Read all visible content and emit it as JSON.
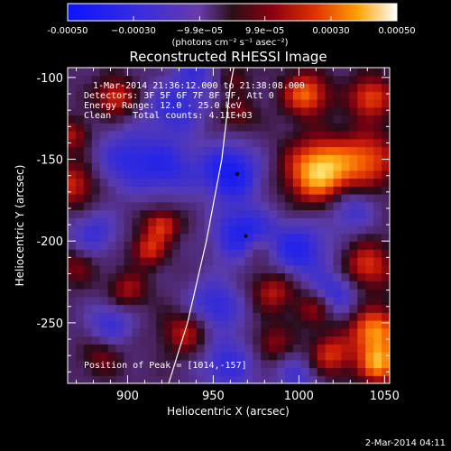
{
  "chart_data": {
    "type": "heatmap",
    "title": "Reconstructed RHESSI Image",
    "xlabel": "Heliocentric X (arcsec)",
    "ylabel": "Heliocentric Y (arcsec)",
    "xlim": [
      865,
      1053
    ],
    "ylim": [
      -287,
      -94
    ],
    "xticks": [
      900,
      950,
      1000,
      1050
    ],
    "yticks": [
      -100,
      -150,
      -200,
      -250
    ],
    "colorbar": {
      "range": [
        -0.0005,
        0.0005
      ],
      "tick_values": [
        -0.0005,
        -0.0003,
        -9.9e-05,
        9.9e-05,
        0.0003,
        0.0005
      ],
      "tick_labels": [
        "-0.00050",
        "−0.00030",
        "−9.9e−05",
        "9.9e−05",
        "0.00030",
        "0.00050"
      ],
      "unit_label": "(photons cm⁻² s⁻¹ asec⁻²)"
    },
    "annotations": [
      "1-Mar-2014 21:36:12.000 to 21:38:08.000",
      "Detectors: 3F 5F 6F 7F 8F 9F, Att 0",
      "Energy Range: 12.0 - 25.0 keV",
      "Clean    Total counts: 4.11E+03"
    ],
    "peak_label": "Position of Peak = [1014,-157]",
    "grid": false,
    "sources": [
      {
        "x": 1012,
        "y": -157,
        "sigma": 13,
        "amp": 1.0
      },
      {
        "x": 1004,
        "y": -110,
        "sigma": 9,
        "amp": 0.7
      },
      {
        "x": 1042,
        "y": -112,
        "sigma": 9,
        "amp": 0.6
      },
      {
        "x": 1040,
        "y": -150,
        "sigma": 12,
        "amp": 0.6
      },
      {
        "x": 1040,
        "y": -215,
        "sigma": 10,
        "amp": 0.55
      },
      {
        "x": 1044,
        "y": -255,
        "sigma": 10,
        "amp": 0.8
      },
      {
        "x": 1047,
        "y": -275,
        "sigma": 8,
        "amp": 0.8
      },
      {
        "x": 1010,
        "y": -240,
        "sigma": 8,
        "amp": 0.45
      },
      {
        "x": 1018,
        "y": -270,
        "sigma": 9,
        "amp": 0.55
      },
      {
        "x": 985,
        "y": -262,
        "sigma": 8,
        "amp": 0.35
      },
      {
        "x": 985,
        "y": -230,
        "sigma": 9,
        "amp": 0.45
      },
      {
        "x": 975,
        "y": -205,
        "sigma": 8,
        "amp": 0.4
      },
      {
        "x": 965,
        "y": -122,
        "sigma": 7,
        "amp": 0.3
      },
      {
        "x": 962,
        "y": -100,
        "sigma": 6,
        "amp": 0.25
      },
      {
        "x": 920,
        "y": -190,
        "sigma": 7,
        "amp": 0.55
      },
      {
        "x": 912,
        "y": -205,
        "sigma": 7,
        "amp": 0.5
      },
      {
        "x": 893,
        "y": -112,
        "sigma": 8,
        "amp": 0.55
      },
      {
        "x": 900,
        "y": -230,
        "sigma": 8,
        "amp": 0.4
      },
      {
        "x": 935,
        "y": -255,
        "sigma": 10,
        "amp": 0.5
      },
      {
        "x": 885,
        "y": -270,
        "sigma": 8,
        "amp": 0.3
      },
      {
        "x": 868,
        "y": -165,
        "sigma": 10,
        "amp": 0.5
      },
      {
        "x": 868,
        "y": -135,
        "sigma": 7,
        "amp": 0.4
      },
      {
        "x": 870,
        "y": -215,
        "sigma": 8,
        "amp": 0.3
      },
      {
        "x": 960,
        "y": -158,
        "sigma": 12,
        "amp": -0.7
      },
      {
        "x": 968,
        "y": -197,
        "sigma": 12,
        "amp": -0.7
      },
      {
        "x": 900,
        "y": -150,
        "sigma": 14,
        "amp": -0.45
      },
      {
        "x": 928,
        "y": -118,
        "sigma": 12,
        "amp": -0.45
      },
      {
        "x": 925,
        "y": -155,
        "sigma": 12,
        "amp": -0.4
      },
      {
        "x": 950,
        "y": -240,
        "sigma": 12,
        "amp": -0.5
      },
      {
        "x": 1000,
        "y": -205,
        "sigma": 12,
        "amp": -0.55
      },
      {
        "x": 1020,
        "y": -232,
        "sigma": 10,
        "amp": -0.5
      },
      {
        "x": 1030,
        "y": -180,
        "sigma": 10,
        "amp": -0.4
      },
      {
        "x": 890,
        "y": -250,
        "sigma": 10,
        "amp": -0.4
      },
      {
        "x": 880,
        "y": -195,
        "sigma": 10,
        "amp": -0.4
      },
      {
        "x": 958,
        "y": -275,
        "sigma": 12,
        "amp": -0.45
      },
      {
        "x": 1000,
        "y": -282,
        "sigma": 10,
        "amp": -0.35
      },
      {
        "x": 940,
        "y": -95,
        "sigma": 9,
        "amp": -0.35
      }
    ],
    "limb_curve": [
      [
        924,
        -287
      ],
      [
        935,
        -250
      ],
      [
        946,
        -200
      ],
      [
        955,
        -150
      ],
      [
        960,
        -105
      ],
      [
        962,
        -94
      ]
    ],
    "markers": [
      {
        "x": 964,
        "y": -159
      },
      {
        "x": 969,
        "y": -197
      }
    ]
  },
  "footer": {
    "timestamp": "2-Mar-2014 04:11"
  }
}
